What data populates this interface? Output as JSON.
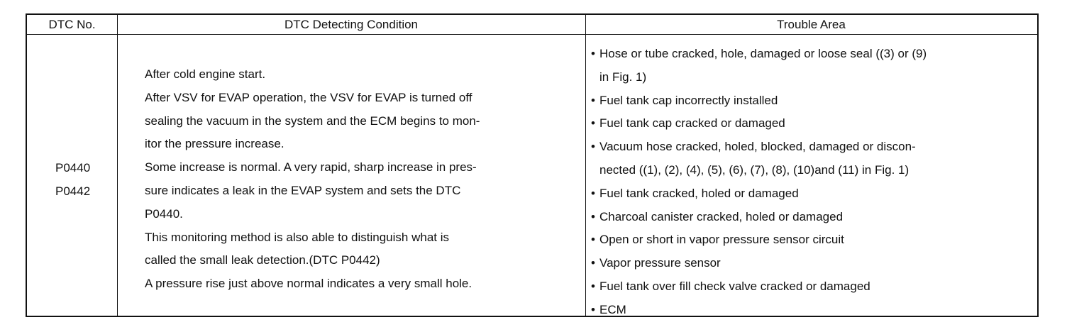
{
  "table": {
    "header": [
      "DTC No.",
      "DTC Detecting Condition",
      "Trouble Area"
    ],
    "row": {
      "dtc": [
        "P0440",
        "P0442"
      ],
      "condition": [
        "After cold engine start.",
        "After VSV for EVAP operation, the VSV for EVAP is turned off",
        "sealing the vacuum in the system and the ECM begins to mon-",
        "itor the pressure increase.",
        "Some increase is normal. A very rapid, sharp increase in pres-",
        "sure indicates a leak in the EVAP system and sets the DTC",
        "P0440.",
        "This monitoring method is also able to distinguish what is",
        "called the small leak detection.(DTC P0442)",
        "A pressure rise just above normal indicates a very small hole."
      ],
      "trouble": [
        [
          "Hose or tube cracked, hole, damaged or loose seal ((3) or (9)",
          "in Fig. 1)"
        ],
        [
          "Fuel tank cap incorrectly installed"
        ],
        [
          "Fuel tank cap cracked or damaged"
        ],
        [
          "Vacuum hose cracked, holed, blocked, damaged or discon-",
          "nected ((1), (2), (4), (5), (6), (7), (8), (10)and (11) in Fig. 1)"
        ],
        [
          "Fuel tank cracked, holed or damaged"
        ],
        [
          "Charcoal canister cracked, holed or damaged"
        ],
        [
          "Open or short in vapor pressure sensor circuit"
        ],
        [
          "Vapor pressure sensor"
        ],
        [
          "Fuel tank over fill check valve cracked or damaged"
        ],
        [
          "ECM"
        ]
      ]
    }
  }
}
